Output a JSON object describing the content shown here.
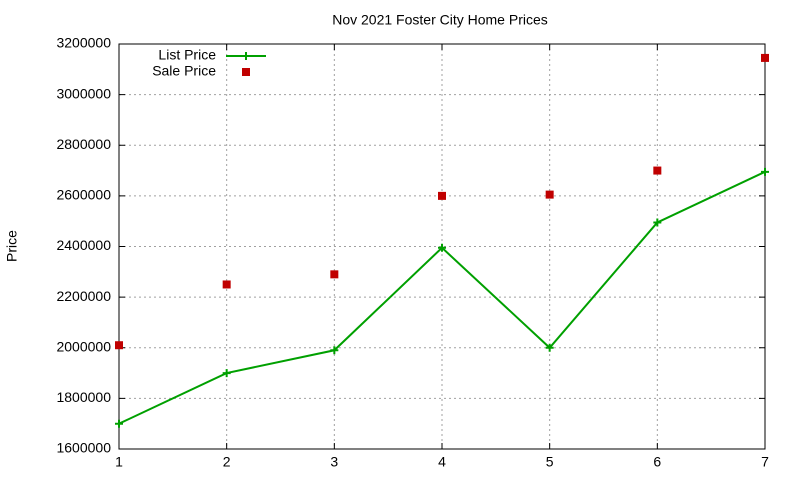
{
  "chart_data": {
    "type": "line",
    "title": "Nov 2021 Foster City Home Prices",
    "y_label": "Price",
    "x": [
      1,
      2,
      3,
      4,
      5,
      6,
      7
    ],
    "series": [
      {
        "name": "List Price",
        "color": "#00a000",
        "marker": "plus",
        "line": true,
        "values": [
          1700000,
          1900000,
          1990000,
          2395000,
          2000000,
          2495000,
          2695000
        ]
      },
      {
        "name": "Sale Price",
        "color": "#c00000",
        "marker": "square",
        "line": false,
        "values": [
          2010000,
          2250000,
          2290000,
          2600000,
          2605000,
          2700000,
          3145000
        ]
      }
    ],
    "xlim": [
      1,
      7
    ],
    "xticks": [
      1,
      2,
      3,
      4,
      5,
      6,
      7
    ],
    "ylim": [
      1600000,
      3200000
    ],
    "yticks": [
      1600000,
      1800000,
      2000000,
      2200000,
      2400000,
      2600000,
      2800000,
      3000000,
      3200000
    ],
    "grid": true,
    "legend": "top-left"
  }
}
